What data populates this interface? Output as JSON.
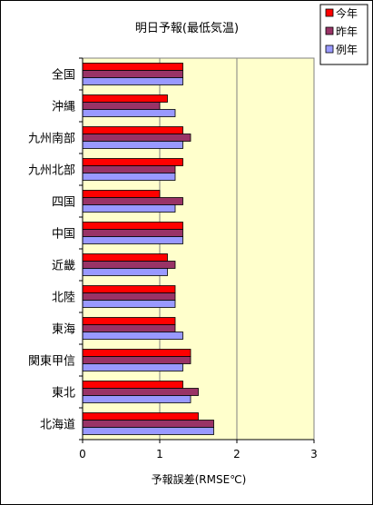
{
  "chart_data": {
    "type": "bar",
    "orientation": "horizontal",
    "title": "明日予報(最低気温)",
    "xlabel": "予報誤差(RMSE℃)",
    "ylabel": "",
    "xlim": [
      0,
      3
    ],
    "xticks": [
      "0",
      "1",
      "2",
      "3"
    ],
    "grid": true,
    "legend_position": "top-right",
    "categories": [
      "全国",
      "沖縄",
      "九州南部",
      "九州北部",
      "四国",
      "中国",
      "近畿",
      "北陸",
      "東海",
      "関東甲信",
      "東北",
      "北海道"
    ],
    "series": [
      {
        "name": "今年",
        "color": "#ff0000",
        "values": [
          1.3,
          1.1,
          1.3,
          1.3,
          1.0,
          1.3,
          1.1,
          1.2,
          1.2,
          1.4,
          1.3,
          1.5
        ]
      },
      {
        "name": "昨年",
        "color": "#993366",
        "values": [
          1.3,
          1.0,
          1.4,
          1.2,
          1.3,
          1.3,
          1.2,
          1.2,
          1.2,
          1.4,
          1.5,
          1.7
        ]
      },
      {
        "name": "例年",
        "color": "#9999ff",
        "values": [
          1.3,
          1.2,
          1.3,
          1.2,
          1.2,
          1.3,
          1.1,
          1.2,
          1.3,
          1.3,
          1.4,
          1.7
        ]
      }
    ],
    "plot_background": "#ffffcc",
    "gridline_color": "#808080"
  }
}
